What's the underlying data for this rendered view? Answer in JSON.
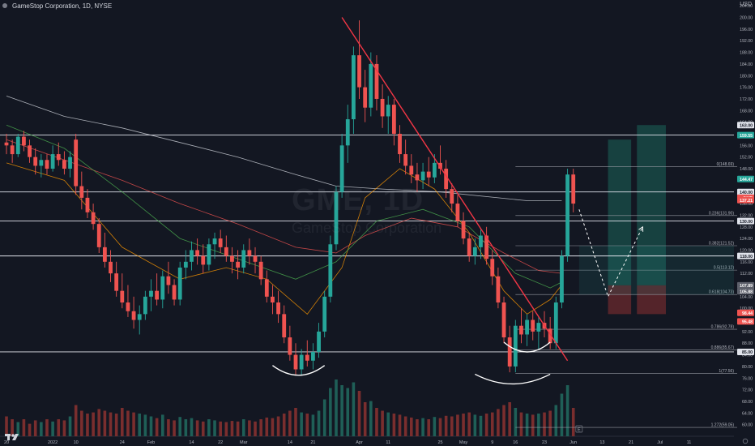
{
  "header": {
    "title": "GameStop Corporation, 1D, NYSE"
  },
  "price_axis": {
    "currency": "USD"
  },
  "watermark": {
    "symbol": "GME, 1D",
    "name": "GameStop Corporation"
  },
  "colors": {
    "background": "#131722",
    "bull": "#26a69a",
    "bear": "#ef5350",
    "trendline": "#f23645",
    "ma_white": "#d1d4dc",
    "ma_red": "#ef5350",
    "ma_orange": "#ff9800",
    "ma_green": "#4caf50",
    "volume_bull": "#1f5f57",
    "volume_bear": "#7a2e2e",
    "long_target": "#1b5e55",
    "long_stop": "#6b2a2d"
  },
  "chart_data": {
    "type": "candlestick",
    "title": "GameStop Corporation, 1D, NYSE",
    "ylabel": "USD",
    "ylim": [
      56,
      206
    ],
    "y_ticks": [
      60,
      64,
      68,
      72,
      76,
      80,
      84,
      88,
      92,
      96,
      100,
      104,
      108,
      112,
      116,
      120,
      124,
      128,
      132,
      136,
      140,
      144,
      148,
      152,
      156,
      160,
      164,
      168,
      172,
      176,
      180,
      184,
      188,
      192,
      196,
      200,
      204
    ],
    "x_tick_labels": [
      {
        "label": "20",
        "bar": 0
      },
      {
        "label": "2022",
        "bar": 8
      },
      {
        "label": "10",
        "bar": 12
      },
      {
        "label": "24",
        "bar": 20
      },
      {
        "label": "Feb",
        "bar": 25
      },
      {
        "label": "14",
        "bar": 32
      },
      {
        "label": "22",
        "bar": 37
      },
      {
        "label": "Mar",
        "bar": 41
      },
      {
        "label": "14",
        "bar": 49
      },
      {
        "label": "21",
        "bar": 53
      },
      {
        "label": "Apr",
        "bar": 61
      },
      {
        "label": "11",
        "bar": 66
      },
      {
        "label": "25",
        "bar": 75
      },
      {
        "label": "May",
        "bar": 79
      },
      {
        "label": "9",
        "bar": 84
      },
      {
        "label": "16",
        "bar": 88
      },
      {
        "label": "23",
        "bar": 93
      },
      {
        "label": "Jun",
        "bar": 98
      },
      {
        "label": "13",
        "bar": 103
      },
      {
        "label": "21",
        "bar": 108
      },
      {
        "label": "Jul",
        "bar": 113
      },
      {
        "label": "11",
        "bar": 118
      }
    ],
    "candles": [
      [
        157,
        160,
        153,
        156
      ],
      [
        156,
        158,
        150,
        153
      ],
      [
        153,
        160,
        152,
        159
      ],
      [
        159,
        161,
        154,
        156
      ],
      [
        156,
        158,
        150,
        152
      ],
      [
        152,
        155,
        146,
        149
      ],
      [
        149,
        153,
        145,
        151
      ],
      [
        151,
        153,
        146,
        148
      ],
      [
        148,
        156,
        147,
        153
      ],
      [
        153,
        157,
        149,
        151
      ],
      [
        151,
        154,
        146,
        148
      ],
      [
        148,
        154,
        145,
        152
      ],
      [
        158,
        160,
        139,
        142
      ],
      [
        142,
        147,
        134,
        138
      ],
      [
        138,
        141,
        131,
        133
      ],
      [
        133,
        136,
        127,
        129
      ],
      [
        129,
        131,
        119,
        121
      ],
      [
        121,
        126,
        114,
        116
      ],
      [
        116,
        120,
        109,
        112
      ],
      [
        112,
        116,
        104,
        106
      ],
      [
        106,
        112,
        100,
        102
      ],
      [
        102,
        108,
        97,
        99
      ],
      [
        99,
        104,
        93,
        96
      ],
      [
        96,
        101,
        91,
        98
      ],
      [
        98,
        106,
        96,
        104
      ],
      [
        104,
        110,
        99,
        106
      ],
      [
        106,
        112,
        101,
        103
      ],
      [
        103,
        113,
        100,
        111
      ],
      [
        111,
        116,
        105,
        108
      ],
      [
        108,
        110,
        101,
        103
      ],
      [
        103,
        116,
        101,
        114
      ],
      [
        114,
        120,
        110,
        116
      ],
      [
        116,
        123,
        113,
        120
      ],
      [
        120,
        124,
        115,
        118
      ],
      [
        118,
        122,
        112,
        115
      ],
      [
        115,
        124,
        113,
        122
      ],
      [
        122,
        126,
        117,
        124
      ],
      [
        124,
        127,
        119,
        121
      ],
      [
        121,
        125,
        116,
        118
      ],
      [
        118,
        121,
        112,
        116
      ],
      [
        116,
        120,
        110,
        114
      ],
      [
        114,
        122,
        112,
        120
      ],
      [
        120,
        124,
        115,
        118
      ],
      [
        118,
        121,
        112,
        116
      ],
      [
        116,
        118,
        108,
        110
      ],
      [
        110,
        113,
        102,
        104
      ],
      [
        104,
        108,
        98,
        102
      ],
      [
        102,
        106,
        95,
        98
      ],
      [
        98,
        101,
        88,
        90
      ],
      [
        90,
        94,
        82,
        84
      ],
      [
        84,
        88,
        77,
        79
      ],
      [
        79,
        86,
        77,
        84
      ],
      [
        84,
        89,
        80,
        82
      ],
      [
        82,
        88,
        79,
        85
      ],
      [
        85,
        95,
        83,
        92
      ],
      [
        92,
        106,
        90,
        104
      ],
      [
        104,
        125,
        102,
        122
      ],
      [
        122,
        142,
        120,
        140
      ],
      [
        140,
        160,
        138,
        156
      ],
      [
        156,
        170,
        150,
        165
      ],
      [
        165,
        190,
        160,
        187
      ],
      [
        187,
        199,
        172,
        176
      ],
      [
        176,
        182,
        164,
        169
      ],
      [
        169,
        188,
        166,
        184
      ],
      [
        184,
        187,
        168,
        172
      ],
      [
        172,
        177,
        162,
        166
      ],
      [
        166,
        173,
        160,
        170
      ],
      [
        170,
        172,
        156,
        160
      ],
      [
        160,
        163,
        150,
        153
      ],
      [
        153,
        158,
        146,
        149
      ],
      [
        149,
        153,
        143,
        146
      ],
      [
        146,
        150,
        140,
        144
      ],
      [
        144,
        150,
        141,
        147
      ],
      [
        147,
        152,
        142,
        145
      ],
      [
        145,
        153,
        143,
        150
      ],
      [
        150,
        156,
        146,
        148
      ],
      [
        148,
        151,
        138,
        141
      ],
      [
        141,
        143,
        133,
        136
      ],
      [
        136,
        139,
        128,
        130
      ],
      [
        130,
        133,
        122,
        124
      ],
      [
        124,
        126,
        116,
        118
      ],
      [
        118,
        124,
        115,
        121
      ],
      [
        121,
        127,
        117,
        125
      ],
      [
        125,
        128,
        115,
        117
      ],
      [
        117,
        120,
        108,
        111
      ],
      [
        111,
        114,
        100,
        102
      ],
      [
        102,
        104,
        88,
        90
      ],
      [
        90,
        94,
        78,
        80
      ],
      [
        80,
        96,
        78,
        94
      ],
      [
        94,
        100,
        88,
        91
      ],
      [
        91,
        98,
        87,
        96
      ],
      [
        96,
        99,
        89,
        92
      ],
      [
        92,
        97,
        86,
        95
      ],
      [
        95,
        99,
        90,
        93
      ],
      [
        93,
        97,
        86,
        88
      ],
      [
        88,
        104,
        86,
        102
      ],
      [
        102,
        120,
        100,
        118
      ],
      [
        118,
        148,
        116,
        146
      ],
      [
        146,
        148,
        133,
        136
      ]
    ],
    "volume_relative": [
      0.35,
      0.3,
      0.25,
      0.3,
      0.22,
      0.28,
      0.25,
      0.3,
      0.26,
      0.3,
      0.28,
      0.35,
      0.55,
      0.45,
      0.4,
      0.42,
      0.48,
      0.45,
      0.42,
      0.4,
      0.5,
      0.45,
      0.42,
      0.4,
      0.38,
      0.35,
      0.32,
      0.38,
      0.3,
      0.28,
      0.34,
      0.3,
      0.32,
      0.28,
      0.26,
      0.3,
      0.28,
      0.26,
      0.25,
      0.27,
      0.26,
      0.3,
      0.28,
      0.26,
      0.3,
      0.33,
      0.32,
      0.35,
      0.4,
      0.45,
      0.5,
      0.42,
      0.4,
      0.38,
      0.45,
      0.65,
      0.85,
      1.0,
      0.9,
      0.85,
      0.95,
      0.8,
      0.6,
      0.62,
      0.5,
      0.45,
      0.42,
      0.4,
      0.38,
      0.35,
      0.33,
      0.3,
      0.32,
      0.3,
      0.34,
      0.32,
      0.36,
      0.35,
      0.38,
      0.4,
      0.42,
      0.38,
      0.36,
      0.4,
      0.42,
      0.48,
      0.55,
      0.6,
      0.5,
      0.42,
      0.4,
      0.38,
      0.4,
      0.42,
      0.45,
      0.55,
      0.75,
      0.9,
      0.5
    ],
    "moving_averages": [
      {
        "name": "MA (white)",
        "color": "#d1d4dc",
        "points": [
          [
            0,
            173
          ],
          [
            10,
            166
          ],
          [
            20,
            162
          ],
          [
            30,
            157
          ],
          [
            40,
            152
          ],
          [
            50,
            146
          ],
          [
            57,
            142
          ],
          [
            65,
            141
          ],
          [
            75,
            140
          ],
          [
            85,
            138
          ],
          [
            90,
            137
          ],
          [
            96,
            137
          ]
        ]
      },
      {
        "name": "MA (red)",
        "color": "#ef5350",
        "points": [
          [
            0,
            158
          ],
          [
            10,
            151
          ],
          [
            20,
            144
          ],
          [
            30,
            136
          ],
          [
            40,
            129
          ],
          [
            50,
            121
          ],
          [
            57,
            119
          ],
          [
            62,
            125
          ],
          [
            70,
            131
          ],
          [
            78,
            128
          ],
          [
            86,
            119
          ],
          [
            92,
            113
          ],
          [
            96,
            112
          ]
        ]
      },
      {
        "name": "MA (orange)",
        "color": "#ff9800",
        "points": [
          [
            0,
            150
          ],
          [
            10,
            144
          ],
          [
            20,
            121
          ],
          [
            30,
            110
          ],
          [
            38,
            114
          ],
          [
            45,
            110
          ],
          [
            52,
            98
          ],
          [
            58,
            114
          ],
          [
            62,
            138
          ],
          [
            68,
            148
          ],
          [
            74,
            141
          ],
          [
            80,
            126
          ],
          [
            86,
            106
          ],
          [
            90,
            98
          ],
          [
            94,
            103
          ],
          [
            96,
            108
          ]
        ]
      },
      {
        "name": "MA (green)",
        "color": "#4caf50",
        "points": [
          [
            0,
            163
          ],
          [
            10,
            155
          ],
          [
            20,
            140
          ],
          [
            30,
            124
          ],
          [
            40,
            117
          ],
          [
            50,
            110
          ],
          [
            57,
            116
          ],
          [
            64,
            130
          ],
          [
            72,
            134
          ],
          [
            80,
            128
          ],
          [
            88,
            112
          ],
          [
            94,
            107
          ],
          [
            96,
            109
          ]
        ]
      }
    ],
    "trendline": {
      "from": [
        58,
        200
      ],
      "to": [
        97,
        82
      ]
    },
    "horizontal_levels": [
      {
        "price": 159.55,
        "label": "159.55",
        "style": "white"
      },
      {
        "price": 140.0,
        "label": "140.00",
        "style": "white"
      },
      {
        "price": 130.0,
        "label": "130.00",
        "style": "white"
      },
      {
        "price": 118.0,
        "label": "118.00",
        "style": "white"
      },
      {
        "price": 85.0,
        "label": "85.00",
        "style": "white"
      }
    ],
    "fib_levels": [
      {
        "price": 148.69,
        "label": "0(148.69)"
      },
      {
        "price": 131.9,
        "label": "0.236(131.90)"
      },
      {
        "price": 121.52,
        "label": "0.382(121.52)"
      },
      {
        "price": 113.12,
        "label": "0.5(113.12)"
      },
      {
        "price": 104.73,
        "label": "0.618(104.73)"
      },
      {
        "price": 92.78,
        "label": "0.786(92.78)"
      },
      {
        "price": 85.67,
        "label": "0.886(85.67)"
      },
      {
        "price": 77.56,
        "label": "1(77.56)"
      },
      {
        "price": 59.05,
        "label": "1.272(59.05)"
      }
    ],
    "price_labels": [
      {
        "price": 163.0,
        "text": "163.00",
        "style": "white"
      },
      {
        "price": 159.55,
        "text": "159.55",
        "style": "green"
      },
      {
        "price": 144.47,
        "text": "144.47",
        "style": "green"
      },
      {
        "price": 140.0,
        "text": "140.00",
        "style": "white"
      },
      {
        "price": 138.0,
        "text": "GME",
        "style": "red"
      },
      {
        "price": 137.21,
        "text": "137.21",
        "style": "red"
      },
      {
        "price": 130.0,
        "text": "130.00",
        "style": "white"
      },
      {
        "price": 118.0,
        "text": "118.00",
        "style": "white"
      },
      {
        "price": 107.89,
        "text": "107.89",
        "style": "gray"
      },
      {
        "price": 105.88,
        "text": "105.88",
        "style": "gray"
      },
      {
        "price": 98.44,
        "text": "98.44",
        "style": "red"
      },
      {
        "price": 95.48,
        "text": "95.48",
        "style": "red"
      },
      {
        "price": 85.0,
        "text": "85.00",
        "style": "white"
      }
    ],
    "long_positions": [
      {
        "from_bar": 104,
        "to_bar": 108,
        "entry": 107.9,
        "target": 158,
        "stop": 98
      },
      {
        "from_bar": 109,
        "to_bar": 114,
        "entry": 107.9,
        "target": 163,
        "stop": 98
      }
    ],
    "projection_path": [
      [
        99,
        134
      ],
      [
        104,
        104
      ],
      [
        110,
        128
      ]
    ],
    "arcs": [
      {
        "from_bar": 46,
        "to_bar": 55,
        "bottom_price": 77
      },
      {
        "from_bar": 81,
        "to_bar": 94,
        "bottom_price": 74
      },
      {
        "from_bar": 86,
        "to_bar": 94,
        "bottom_price": 85
      }
    ],
    "grid": false,
    "bottom_badge": "E"
  }
}
